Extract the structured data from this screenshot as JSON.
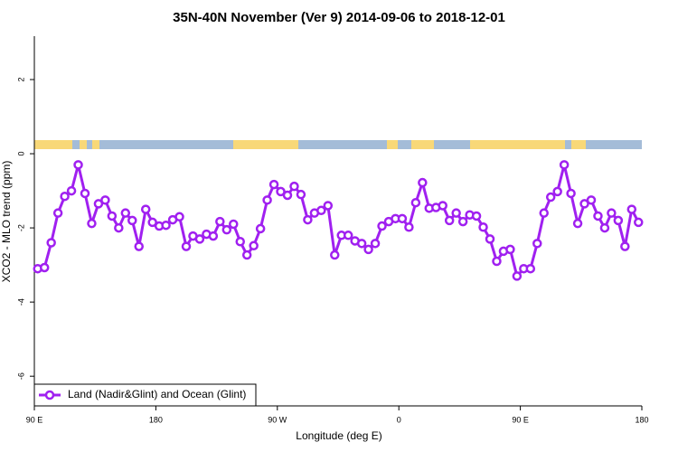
{
  "chart_data": {
    "type": "line",
    "title": "35N-40N November (Ver 9)   2014-09-06 to 2018-12-01",
    "x_label": "Longitude (deg E)",
    "y_label": "XCO2 - MLO trend (ppm)",
    "xlim": [
      90,
      540
    ],
    "ylim": [
      -6.8,
      3.17
    ],
    "xticks": [
      {
        "value": 90,
        "label": "90 E"
      },
      180,
      {
        "value": 270,
        "label": "90 W"
      },
      {
        "value": 360,
        "label": "0"
      },
      {
        "value": 450,
        "label": "90 E"
      },
      {
        "value": 540,
        "label": "180"
      }
    ],
    "yticks": [
      -6,
      -4,
      -2,
      0,
      2
    ],
    "legend": "bottom-left",
    "x": [
      92.5,
      97.5,
      102.5,
      107.5,
      112.5,
      117.5,
      122.5,
      127.5,
      132.5,
      137.5,
      142.5,
      147.5,
      152.5,
      157.5,
      162.5,
      167.5,
      172.5,
      177.5,
      182.5,
      187.5,
      192.5,
      197.5,
      202.5,
      207.5,
      212.5,
      217.5,
      222.5,
      227.5,
      232.5,
      237.5,
      242.5,
      247.5,
      252.5,
      257.5,
      262.5,
      267.5,
      272.5,
      277.5,
      282.5,
      287.5,
      292.5,
      297.5,
      302.5,
      307.5,
      312.5,
      317.5,
      322.5,
      327.5,
      332.5,
      337.5,
      342.5,
      347.5,
      352.5,
      357.5,
      362.5,
      367.5,
      372.5,
      377.5,
      382.5,
      387.5,
      392.5,
      397.5,
      402.5,
      407.5,
      412.5,
      417.5,
      422.5,
      427.5,
      432.5,
      437.5,
      442.5,
      447.5,
      452.5,
      457.5,
      462.5,
      467.5,
      472.5,
      477.5,
      482.5,
      487.5,
      492.5,
      497.5,
      502.5,
      507.5,
      512.5,
      517.5,
      522.5,
      527.5,
      532.5,
      537.5
    ],
    "series": [
      {
        "name": "Land (Nadir&Glint) and Ocean (Glint)",
        "color": "#a020f0",
        "values": [
          -3.1,
          -3.07,
          -2.4,
          -1.6,
          -1.15,
          -1.0,
          -0.3,
          -1.07,
          -1.88,
          -1.35,
          -1.25,
          -1.68,
          -2.0,
          -1.6,
          -1.8,
          -2.5,
          -1.5,
          -1.85,
          -1.95,
          -1.93,
          -1.78,
          -1.7,
          -2.5,
          -2.22,
          -2.3,
          -2.17,
          -2.22,
          -1.83,
          -2.05,
          -1.9,
          -2.37,
          -2.73,
          -2.48,
          -2.02,
          -1.25,
          -0.83,
          -1.02,
          -1.12,
          -0.88,
          -1.1,
          -1.78,
          -1.6,
          -1.53,
          -1.4,
          -2.73,
          -2.2,
          -2.2,
          -2.35,
          -2.42,
          -2.58,
          -2.42,
          -1.95,
          -1.83,
          -1.75,
          -1.75,
          -1.98,
          -1.32,
          -0.78,
          -1.47,
          -1.45,
          -1.4,
          -1.8,
          -1.6,
          -1.83,
          -1.65,
          -1.68,
          -1.98,
          -2.3,
          -2.9,
          -2.63,
          -2.58,
          -3.3,
          -3.1,
          -3.1,
          -2.42,
          -1.6,
          -1.17,
          -1.02,
          -0.3,
          -1.07,
          -1.88,
          -1.35,
          -1.25,
          -1.68,
          -2.0,
          -1.6,
          -1.8,
          -2.5,
          -1.5,
          -1.85
        ]
      }
    ]
  }
}
